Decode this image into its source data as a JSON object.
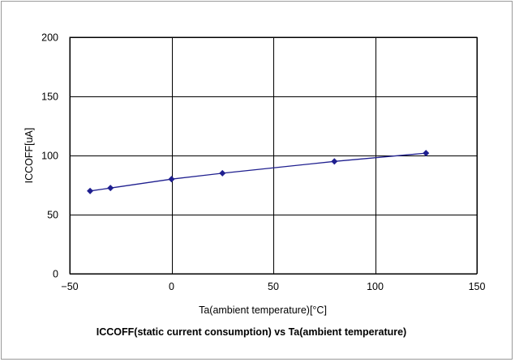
{
  "chart_data": {
    "type": "line",
    "title": "ICCOFF(static current consumption) vs Ta(ambient temperature)",
    "xlabel": "Ta(ambient temperature)[°C]",
    "ylabel": "ICCOFF[uA]",
    "xlim": [
      -50,
      150
    ],
    "ylim": [
      0,
      200
    ],
    "xticks": [
      -50,
      0,
      50,
      100,
      150
    ],
    "yticks": [
      0,
      50,
      100,
      150,
      200
    ],
    "xtick_labels": [
      "−50",
      "0",
      "50",
      "100",
      "150"
    ],
    "ytick_labels": [
      "0",
      "50",
      "100",
      "150",
      "200"
    ],
    "grid": true,
    "legend": "none",
    "series": [
      {
        "x": [
          -40,
          -30,
          0,
          25,
          80,
          125
        ],
        "y": [
          70,
          72.5,
          80,
          85,
          95,
          102
        ],
        "color": "#1f1f8f",
        "marker": "diamond"
      }
    ]
  }
}
